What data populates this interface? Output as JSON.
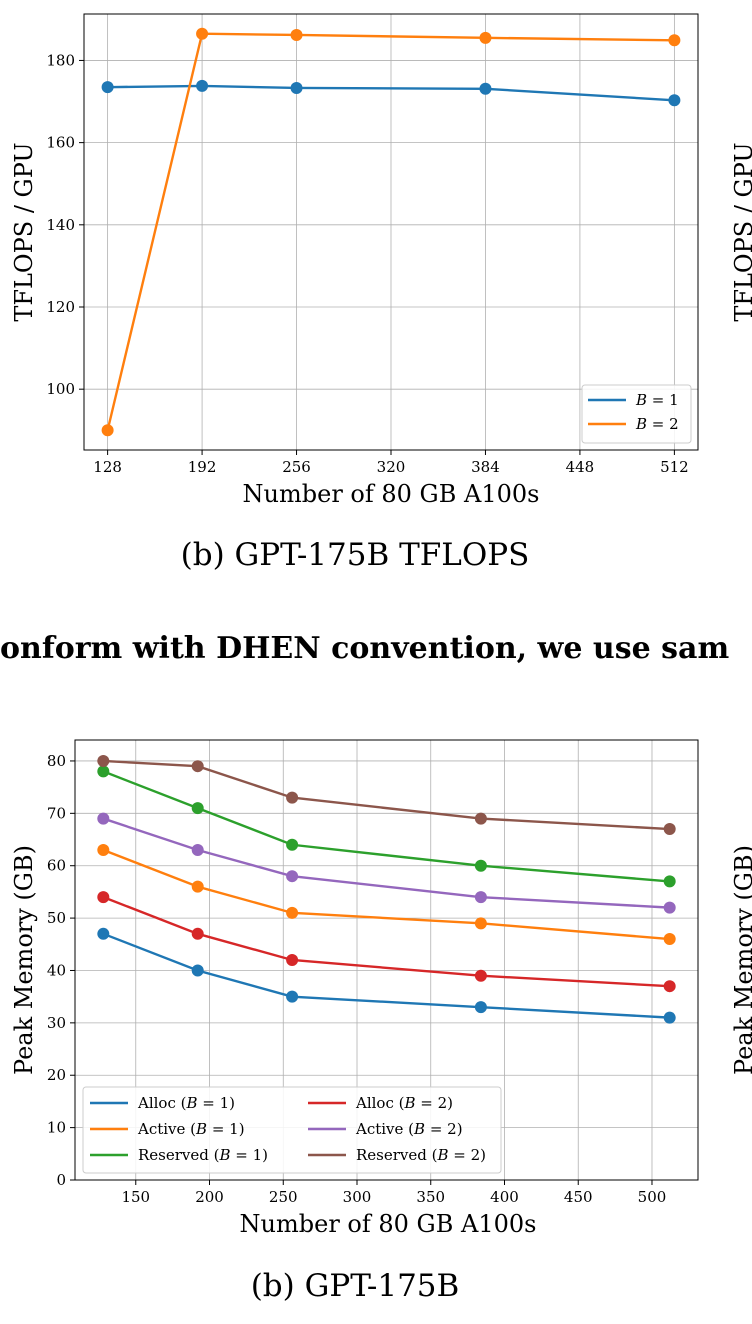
{
  "top_chart": {
    "chart_data": {
      "type": "line",
      "x": [
        128,
        192,
        256,
        384,
        512
      ],
      "series": [
        {
          "name": "B = 1",
          "legend_var": "B",
          "legend_rest": " = 1",
          "color": "#1f77b4",
          "values": [
            173.5,
            173.8,
            173.3,
            173.1,
            170.3
          ]
        },
        {
          "name": "B = 2",
          "legend_var": "B",
          "legend_rest": " = 2",
          "color": "#ff7f0e",
          "values": [
            90.0,
            186.5,
            186.2,
            185.5,
            184.9
          ]
        }
      ],
      "xlabel": "Number of 80 GB A100s",
      "ylabel": "TFLOPS / GPU",
      "xticks": [
        128,
        192,
        256,
        320,
        384,
        448,
        512
      ],
      "yticks": [
        100,
        120,
        140,
        160,
        180
      ],
      "xlim": [
        112,
        528
      ],
      "ylim": [
        85.2,
        191.3
      ],
      "grid": true,
      "legend_position": "lower-right"
    },
    "caption": "(b) GPT-175B TFLOPS",
    "right_cut_label": "TFLOPS / GPU"
  },
  "middle_text": "onform with DHEN convention, we use sam",
  "bottom_chart": {
    "chart_data": {
      "type": "line",
      "x": [
        128,
        192,
        256,
        384,
        512
      ],
      "series": [
        {
          "name": "Alloc (B = 1)",
          "legend_pre": "Alloc (",
          "legend_var": "B",
          "legend_post": " = 1)",
          "color": "#1f77b4",
          "values": [
            47,
            40,
            35,
            33,
            31
          ]
        },
        {
          "name": "Active (B = 1)",
          "legend_pre": "Active (",
          "legend_var": "B",
          "legend_post": " = 1)",
          "color": "#ff7f0e",
          "values": [
            63,
            56,
            51,
            49,
            46
          ]
        },
        {
          "name": "Reserved (B = 1)",
          "legend_pre": "Reserved (",
          "legend_var": "B",
          "legend_post": " = 1)",
          "color": "#2ca02c",
          "values": [
            78,
            71,
            64,
            60,
            57
          ]
        },
        {
          "name": "Alloc (B = 2)",
          "legend_pre": "Alloc (",
          "legend_var": "B",
          "legend_post": " = 2)",
          "color": "#d62728",
          "values": [
            54,
            47,
            42,
            39,
            37
          ]
        },
        {
          "name": "Active (B = 2)",
          "legend_pre": "Active (",
          "legend_var": "B",
          "legend_post": " = 2)",
          "color": "#9467bd",
          "values": [
            69,
            63,
            58,
            54,
            52
          ]
        },
        {
          "name": "Reserved (B = 2)",
          "legend_pre": "Reserved (",
          "legend_var": "B",
          "legend_post": " = 2)",
          "color": "#8c564b",
          "values": [
            80,
            79,
            73,
            69,
            67
          ]
        }
      ],
      "xlabel": "Number of 80 GB A100s",
      "ylabel": "Peak Memory (GB)",
      "xticks": [
        150,
        200,
        250,
        300,
        350,
        400,
        450,
        500
      ],
      "yticks": [
        0,
        10,
        20,
        30,
        40,
        50,
        60,
        70,
        80
      ],
      "xlim": [
        108.8,
        531.2
      ],
      "ylim": [
        0,
        84
      ],
      "grid": true,
      "legend_position": "lower-left"
    },
    "caption": "(b) GPT-175B",
    "right_cut_label": "Peak Memory (GB)"
  }
}
